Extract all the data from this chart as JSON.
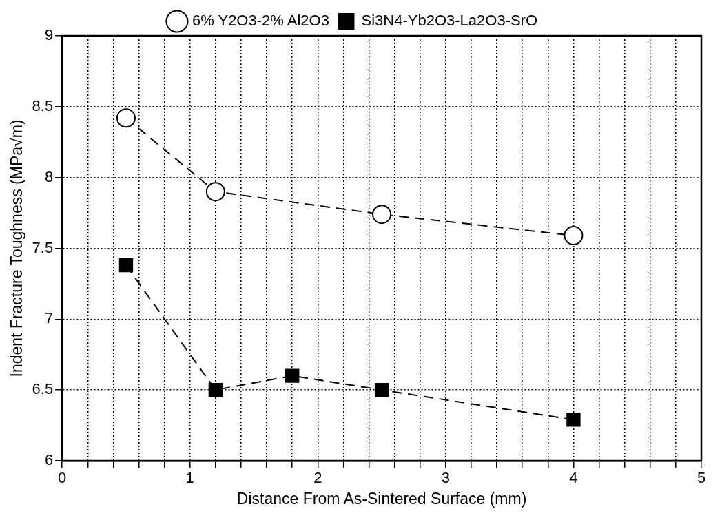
{
  "chart_data": {
    "type": "line",
    "xlabel": "Distance From As-Sintered Surface (mm)",
    "ylabel": "Indent Fracture Toughness (MPa√m)",
    "xlim": [
      0,
      5
    ],
    "ylim": [
      6,
      9
    ],
    "xticks": [
      0,
      {
        "value": 0.2,
        "label": null
      },
      {
        "value": 0.4,
        "label": null
      },
      {
        "value": 0.6,
        "label": null
      },
      {
        "value": 0.8,
        "label": null
      },
      1,
      {
        "value": 1.2,
        "label": null
      },
      {
        "value": 1.4,
        "label": null
      },
      {
        "value": 1.6,
        "label": null
      },
      {
        "value": 1.8,
        "label": null
      },
      2,
      {
        "value": 2.2,
        "label": null
      },
      {
        "value": 2.4,
        "label": null
      },
      {
        "value": 2.6,
        "label": null
      },
      {
        "value": 2.8,
        "label": null
      },
      3,
      {
        "value": 3.2,
        "label": null
      },
      {
        "value": 3.4,
        "label": null
      },
      {
        "value": 3.6,
        "label": null
      },
      {
        "value": 3.8,
        "label": null
      },
      4,
      {
        "value": 4.2,
        "label": null
      },
      {
        "value": 4.4,
        "label": null
      },
      {
        "value": 4.6,
        "label": null
      },
      {
        "value": 4.8,
        "label": null
      },
      5
    ],
    "yticks": [
      6,
      6.5,
      7,
      7.5,
      8,
      8.5,
      9
    ],
    "grid": true,
    "legend": "top",
    "series": [
      {
        "name": "6% Y2O3-2% Al2O3",
        "color": "#000000",
        "x": [
          0.5,
          1.2,
          2.5,
          4
        ],
        "values": [
          8.42,
          7.9,
          7.74,
          7.59
        ],
        "marker": "circle",
        "line_style": "dashed"
      },
      {
        "name": "Si3N4-Yb2O3-La2O3-SrO",
        "color": "#000000",
        "x": [
          0.5,
          1.2,
          1.8,
          2.5,
          4
        ],
        "values": [
          7.38,
          6.5,
          6.6,
          6.5,
          6.29
        ],
        "marker": "square",
        "line_style": "dashed"
      }
    ]
  }
}
